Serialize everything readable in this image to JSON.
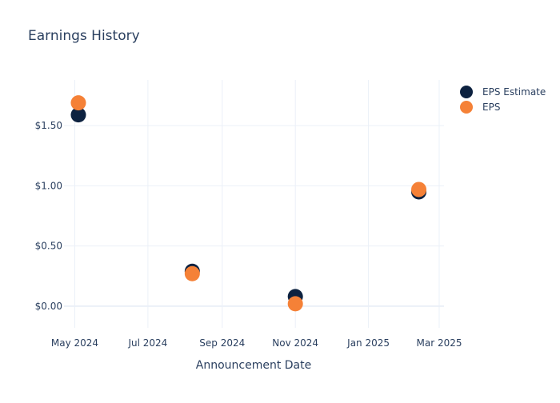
{
  "chart_data": {
    "type": "scatter",
    "title": "Earnings History",
    "xlabel": "Announcement Date",
    "ylabel": "",
    "x_ticks": [
      {
        "date": "2024-05-01",
        "label": "May 2024"
      },
      {
        "date": "2024-07-01",
        "label": "Jul 2024"
      },
      {
        "date": "2024-09-01",
        "label": "Sep 2024"
      },
      {
        "date": "2024-11-01",
        "label": "Nov 2024"
      },
      {
        "date": "2025-01-01",
        "label": "Jan 2025"
      },
      {
        "date": "2025-03-01",
        "label": "Mar 2025"
      }
    ],
    "y_ticks": [
      {
        "value": 0,
        "label": "$0.00"
      },
      {
        "value": 0.5,
        "label": "$0.50"
      },
      {
        "value": 1.0,
        "label": "$1.00"
      },
      {
        "value": 1.5,
        "label": "$1.50"
      }
    ],
    "xlim": [
      "2024-04-22",
      "2025-03-05"
    ],
    "ylim": [
      -0.18,
      1.88
    ],
    "grid": true,
    "legend_position": "top-right",
    "series": [
      {
        "name": "EPS Estimate",
        "color": "#0d2240",
        "points": [
          {
            "x": "2024-05-04",
            "y": 1.59
          },
          {
            "x": "2024-08-07",
            "y": 0.29
          },
          {
            "x": "2024-11-01",
            "y": 0.08
          },
          {
            "x": "2025-02-12",
            "y": 0.95
          }
        ]
      },
      {
        "name": "EPS",
        "color": "#f58137",
        "points": [
          {
            "x": "2024-05-04",
            "y": 1.69
          },
          {
            "x": "2024-08-07",
            "y": 0.27
          },
          {
            "x": "2024-11-01",
            "y": 0.02
          },
          {
            "x": "2025-02-12",
            "y": 0.97
          }
        ]
      }
    ]
  }
}
